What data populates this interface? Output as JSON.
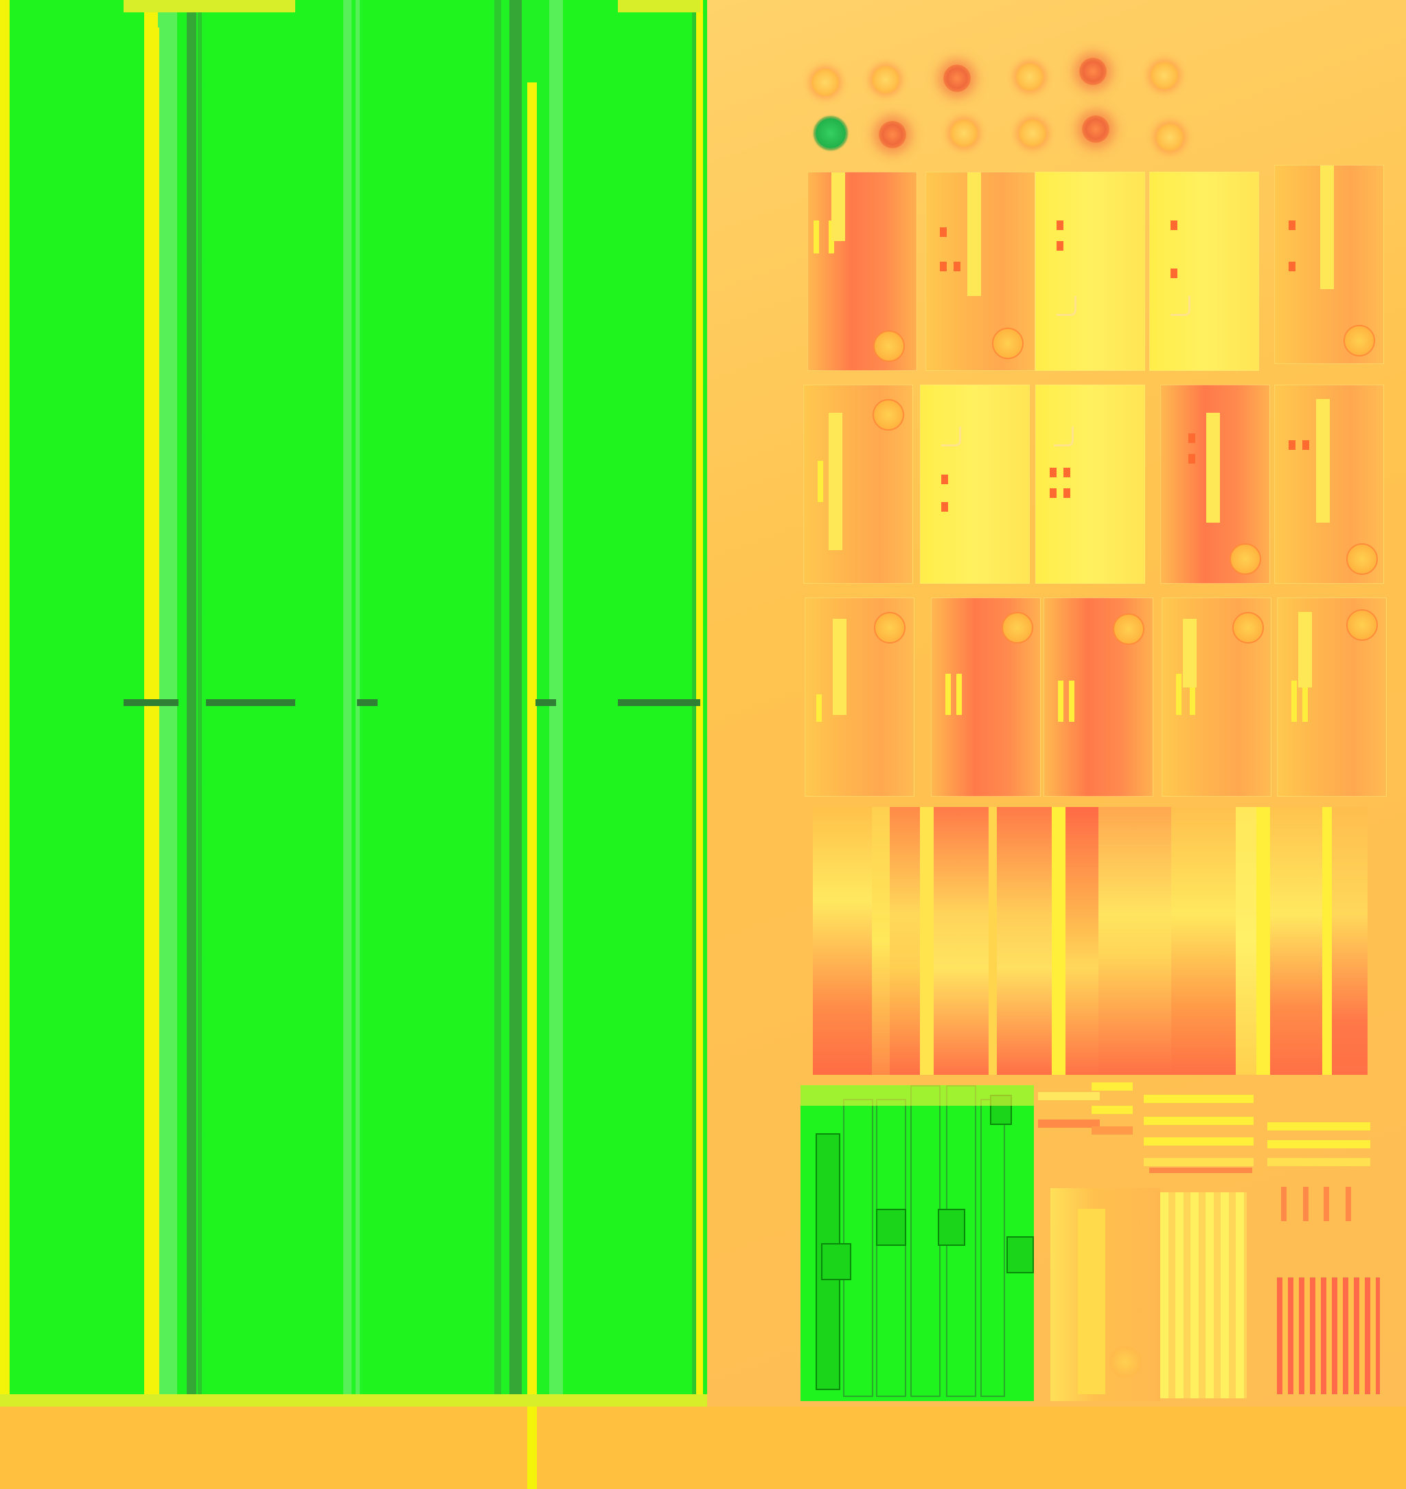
{
  "texture": {
    "left_region": {
      "name": "green-metal-panels",
      "base_color": "#1ff41f",
      "highlight_color": "#f4f40a"
    },
    "right_region": {
      "name": "orange-machine-parts",
      "base_color": "#ffc04a",
      "accent_color": "#ff7a4a",
      "yellow_color": "#fff05a"
    }
  }
}
